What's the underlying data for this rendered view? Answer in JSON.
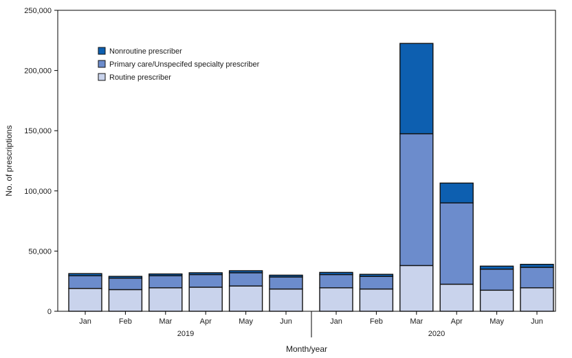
{
  "chart_data": {
    "type": "bar",
    "stacked": true,
    "xlabel": "Month/year",
    "ylabel": "No. of prescriptions",
    "ylim": [
      0,
      250000
    ],
    "yticks": [
      0,
      50000,
      100000,
      150000,
      200000,
      250000
    ],
    "ytick_labels": [
      "0",
      "50,000",
      "100,000",
      "150,000",
      "200,000",
      "250,000"
    ],
    "groups": [
      {
        "year": "2019",
        "months": [
          "Jan",
          "Feb",
          "Mar",
          "Apr",
          "May",
          "Jun"
        ]
      },
      {
        "year": "2020",
        "months": [
          "Jan",
          "Feb",
          "Mar",
          "Apr",
          "May",
          "Jun"
        ]
      }
    ],
    "series": [
      {
        "name": "Routine prescriber",
        "color": "#c9d3ec",
        "values": [
          19000,
          18000,
          19500,
          20000,
          21000,
          18500,
          19500,
          18500,
          38000,
          22500,
          17500,
          19500
        ]
      },
      {
        "name": "Primary care/Unspecifed specialty prescriber",
        "color": "#6c8ccc",
        "values": [
          10500,
          9500,
          10000,
          10500,
          11000,
          10000,
          11000,
          10500,
          109500,
          67500,
          17500,
          17000
        ]
      },
      {
        "name": "Nonroutine prescriber",
        "color": "#0d5fb0",
        "values": [
          1800,
          1500,
          1500,
          1500,
          1700,
          1500,
          1800,
          1700,
          75000,
          16500,
          2500,
          2500
        ]
      }
    ],
    "legend": {
      "position": "top-left",
      "order": [
        "Nonroutine prescriber",
        "Primary care/Unspecifed specialty prescriber",
        "Routine prescriber"
      ]
    }
  }
}
